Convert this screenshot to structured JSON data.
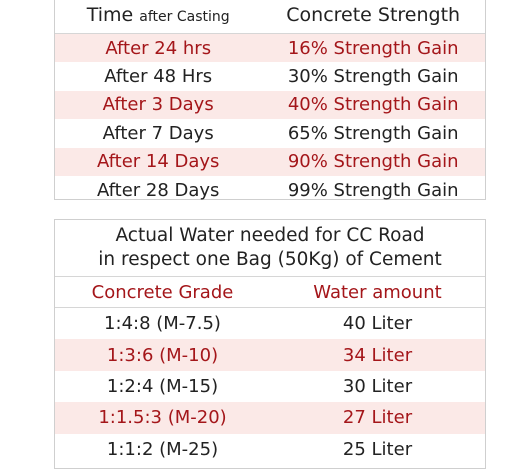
{
  "strength_table": {
    "header_col1_main": "Time",
    "header_col1_small": "after Casting",
    "header_col2": "Concrete Strength",
    "rows": [
      {
        "time": "After 24 hrs",
        "strength": "16% Strength Gain"
      },
      {
        "time": "After 48 Hrs",
        "strength": "30% Strength Gain"
      },
      {
        "time": "After 3 Days",
        "strength": "40% Strength Gain"
      },
      {
        "time": "After 7 Days",
        "strength": "65% Strength Gain"
      },
      {
        "time": "After 14 Days",
        "strength": "90% Strength Gain"
      },
      {
        "time": "After 28 Days",
        "strength": "99% Strength Gain"
      }
    ]
  },
  "water_table": {
    "title_line1": "Actual Water needed for CC Road",
    "title_line2": "in respect one Bag (50Kg) of Cement",
    "header_col1": "Concrete Grade",
    "header_col2": "Water amount",
    "rows": [
      {
        "grade": "1:4:8 (M-7.5)",
        "water": "40 Liter"
      },
      {
        "grade": "1:3:6 (M-10)",
        "water": "34 Liter"
      },
      {
        "grade": "1:2:4 (M-15)",
        "water": "30 Liter"
      },
      {
        "grade": "1:1.5:3 (M-20)",
        "water": "27 Liter"
      },
      {
        "grade": "1:1:2 (M-25)",
        "water": "25 Liter"
      }
    ]
  },
  "colors": {
    "accent_red": "#a4161a",
    "row_shade": "#fbe9e7",
    "text_dark": "#222222"
  }
}
